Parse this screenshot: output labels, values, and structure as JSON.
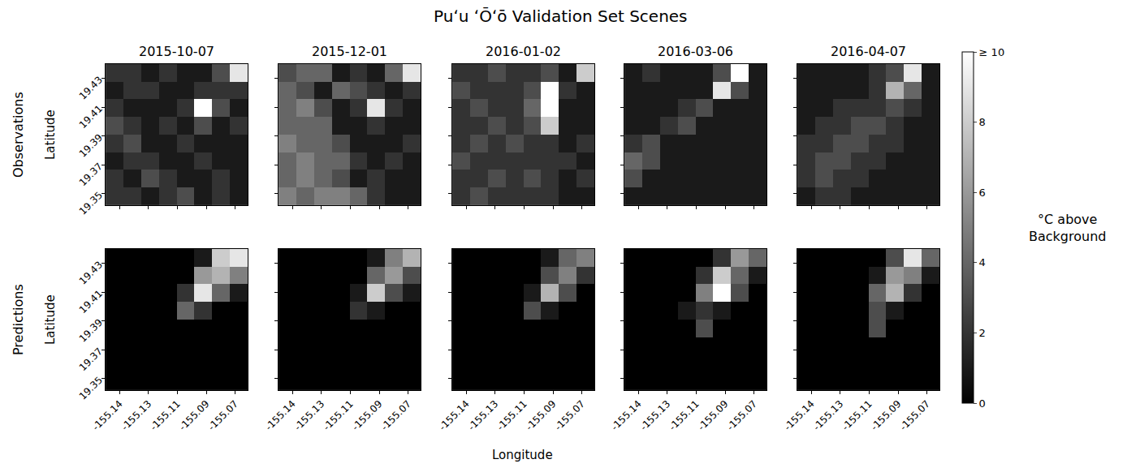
{
  "chart_data": {
    "type": "heatmap",
    "title": "Puʻu ʻŌʻō Validation Set Scenes",
    "xlabel": "Longitude",
    "ylabel": "Latitude",
    "columns": [
      "2015-10-07",
      "2015-12-01",
      "2016-01-02",
      "2016-03-06",
      "2016-04-07"
    ],
    "xlim": [
      -155.151,
      -155.065
    ],
    "ylim": [
      19.342,
      19.44
    ],
    "xticks": [
      {
        "value": -155.1425,
        "label": "-155.14"
      },
      {
        "value": -155.125,
        "label": "-155.13"
      },
      {
        "value": -155.1075,
        "label": "-155.11"
      },
      {
        "value": -155.09,
        "label": "-155.09"
      },
      {
        "value": -155.0725,
        "label": "-155.07"
      }
    ],
    "yticks": [
      19.35,
      19.37,
      19.39,
      19.41,
      19.43
    ],
    "cell_x": [
      -155.1456,
      -155.1349,
      -155.1241,
      -155.1134,
      -155.1026,
      -155.0919,
      -155.0811,
      -155.0704
    ],
    "cell_y": [
      19.3481,
      19.3604,
      19.3726,
      19.3849,
      19.3971,
      19.4094,
      19.4216,
      19.4339
    ],
    "colorbar": {
      "label": "°C above Background",
      "range": [
        0,
        10
      ],
      "ticks": [
        0,
        2,
        4,
        6,
        8,
        {
          "value": 10,
          "label": "≥ 10"
        }
      ]
    },
    "rows": [
      {
        "label": "Observations",
        "z": [
          [
            [
              2,
              2,
              1,
              2,
              3,
              1,
              2,
              1
            ],
            [
              2,
              1,
              3,
              2,
              1,
              1,
              2,
              1
            ],
            [
              1,
              2,
              2,
              1,
              1,
              2,
              1,
              1
            ],
            [
              2,
              3,
              1,
              1,
              2,
              1,
              1,
              1
            ],
            [
              3,
              2,
              1,
              2,
              1,
              3,
              1,
              2
            ],
            [
              2,
              1,
              1,
              1,
              2,
              10,
              3,
              1
            ],
            [
              1,
              2,
              2,
              1,
              1,
              2,
              2,
              2
            ],
            [
              2,
              2,
              1,
              2,
              1,
              1,
              3,
              9
            ]
          ],
          [
            [
              5,
              4,
              5,
              5,
              4,
              2,
              1,
              1
            ],
            [
              4,
              5,
              4,
              3,
              1,
              2,
              1,
              1
            ],
            [
              4,
              5,
              4,
              4,
              2,
              1,
              2,
              1
            ],
            [
              5,
              4,
              4,
              3,
              1,
              1,
              1,
              2
            ],
            [
              4,
              4,
              4,
              1,
              1,
              2,
              1,
              1
            ],
            [
              4,
              5,
              3,
              1,
              2,
              9,
              2,
              1
            ],
            [
              4,
              3,
              1,
              4,
              3,
              2,
              1,
              2
            ],
            [
              3,
              4,
              4,
              1,
              2,
              1,
              4,
              9
            ]
          ],
          [
            [
              2,
              3,
              2,
              2,
              2,
              2,
              1,
              1
            ],
            [
              2,
              2,
              3,
              2,
              3,
              2,
              1,
              2
            ],
            [
              3,
              2,
              2,
              2,
              2,
              2,
              2,
              1
            ],
            [
              2,
              3,
              2,
              3,
              2,
              2,
              1,
              2
            ],
            [
              2,
              2,
              3,
              2,
              3,
              8,
              1,
              1
            ],
            [
              2,
              3,
              2,
              2,
              4,
              10,
              1,
              1
            ],
            [
              3,
              2,
              2,
              2,
              3,
              10,
              2,
              1
            ],
            [
              2,
              2,
              3,
              2,
              2,
              3,
              1,
              8
            ]
          ],
          [
            [
              1,
              1,
              1,
              1,
              1,
              1,
              1,
              1
            ],
            [
              3,
              1,
              1,
              1,
              1,
              1,
              1,
              1
            ],
            [
              4,
              3,
              1,
              1,
              1,
              1,
              1,
              1
            ],
            [
              2,
              3,
              1,
              1,
              1,
              1,
              1,
              1
            ],
            [
              1,
              1,
              2,
              3,
              1,
              1,
              1,
              1
            ],
            [
              1,
              1,
              1,
              2,
              3,
              1,
              1,
              1
            ],
            [
              1,
              1,
              1,
              1,
              1,
              9,
              3,
              1
            ],
            [
              1,
              2,
              1,
              1,
              1,
              3,
              10,
              1
            ]
          ],
          [
            [
              1,
              2,
              2,
              1,
              1,
              1,
              1,
              1
            ],
            [
              2,
              3,
              2,
              2,
              1,
              1,
              1,
              1
            ],
            [
              2,
              3,
              3,
              2,
              2,
              1,
              1,
              1
            ],
            [
              2,
              2,
              3,
              3,
              2,
              2,
              1,
              1
            ],
            [
              1,
              2,
              2,
              3,
              3,
              2,
              1,
              1
            ],
            [
              1,
              1,
              2,
              2,
              2,
              3,
              2,
              1
            ],
            [
              1,
              1,
              1,
              1,
              2,
              7,
              4,
              1
            ],
            [
              1,
              1,
              1,
              1,
              2,
              3,
              9,
              1
            ]
          ]
        ]
      },
      {
        "label": "Predictions",
        "z": [
          [
            [
              0,
              0,
              0,
              0,
              0,
              0,
              0,
              0
            ],
            [
              0,
              0,
              0,
              0,
              0,
              0,
              0,
              0
            ],
            [
              0,
              0,
              0,
              0,
              0,
              0,
              0,
              0
            ],
            [
              0,
              0,
              0,
              0,
              0,
              0,
              0,
              0
            ],
            [
              0,
              0,
              0,
              0,
              4,
              2,
              0,
              0
            ],
            [
              0,
              0,
              0,
              0,
              2,
              9,
              4,
              1
            ],
            [
              0,
              0,
              0,
              0,
              0,
              6,
              7,
              5
            ],
            [
              0,
              0,
              0,
              0,
              0,
              1,
              8,
              9
            ]
          ],
          [
            [
              0,
              0,
              0,
              0,
              0,
              0,
              0,
              0
            ],
            [
              0,
              0,
              0,
              0,
              0,
              0,
              0,
              0
            ],
            [
              0,
              0,
              0,
              0,
              0,
              0,
              0,
              0
            ],
            [
              0,
              0,
              0,
              0,
              0,
              0,
              0,
              0
            ],
            [
              0,
              0,
              0,
              0,
              2,
              1,
              0,
              0
            ],
            [
              0,
              0,
              0,
              0,
              1,
              8,
              3,
              1
            ],
            [
              0,
              0,
              0,
              0,
              0,
              4,
              6,
              3
            ],
            [
              0,
              0,
              0,
              0,
              0,
              1,
              5,
              7
            ]
          ],
          [
            [
              0,
              0,
              0,
              0,
              0,
              0,
              0,
              0
            ],
            [
              0,
              0,
              0,
              0,
              0,
              0,
              0,
              0
            ],
            [
              0,
              0,
              0,
              0,
              0,
              0,
              0,
              0
            ],
            [
              0,
              0,
              0,
              0,
              0,
              0,
              0,
              0
            ],
            [
              0,
              0,
              0,
              0,
              3,
              1,
              0,
              0
            ],
            [
              0,
              0,
              0,
              0,
              1,
              7,
              3,
              0
            ],
            [
              0,
              0,
              0,
              0,
              0,
              3,
              5,
              2
            ],
            [
              0,
              0,
              0,
              0,
              0,
              1,
              4,
              5
            ]
          ],
          [
            [
              0,
              0,
              0,
              0,
              0,
              0,
              0,
              0
            ],
            [
              0,
              0,
              0,
              0,
              0,
              0,
              0,
              0
            ],
            [
              0,
              0,
              0,
              0,
              0,
              0,
              0,
              0
            ],
            [
              0,
              0,
              0,
              0,
              3,
              0,
              0,
              0
            ],
            [
              0,
              0,
              0,
              1,
              2,
              1,
              0,
              0
            ],
            [
              0,
              0,
              0,
              0,
              5,
              10,
              3,
              0
            ],
            [
              0,
              0,
              0,
              0,
              2,
              8,
              4,
              1
            ],
            [
              0,
              0,
              0,
              0,
              0,
              2,
              6,
              4
            ]
          ],
          [
            [
              0,
              0,
              0,
              0,
              0,
              0,
              0,
              0
            ],
            [
              0,
              0,
              0,
              0,
              0,
              0,
              0,
              0
            ],
            [
              0,
              0,
              0,
              0,
              0,
              0,
              0,
              0
            ],
            [
              0,
              0,
              0,
              0,
              3,
              0,
              0,
              0
            ],
            [
              0,
              0,
              0,
              0,
              3,
              1,
              0,
              0
            ],
            [
              0,
              0,
              0,
              0,
              4,
              7,
              2,
              0
            ],
            [
              0,
              0,
              0,
              0,
              1,
              6,
              5,
              1
            ],
            [
              0,
              0,
              0,
              0,
              0,
              3,
              9,
              4
            ]
          ]
        ]
      }
    ]
  }
}
